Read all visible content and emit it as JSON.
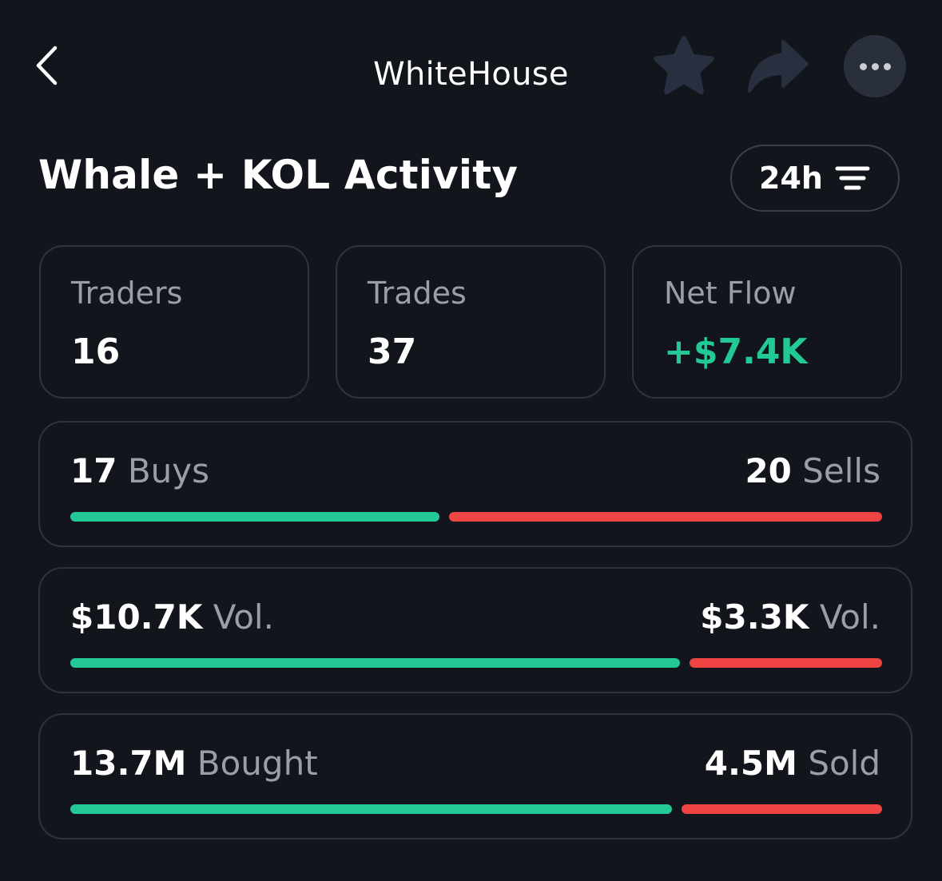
{
  "header": {
    "title": "WhiteHouse",
    "icons": {
      "back": "chevron-left-icon",
      "favorite": "star-icon",
      "share": "share-arrow-icon",
      "more": "more-dots-icon"
    }
  },
  "section": {
    "title": "Whale + KOL Activity",
    "range_label": "24h",
    "range_icon": "filter-lines-icon"
  },
  "stats": [
    {
      "label": "Traders",
      "value": "16"
    },
    {
      "label": "Trades",
      "value": "37"
    },
    {
      "label": "Net Flow",
      "value": "+$7.4K"
    }
  ],
  "rows": [
    {
      "left_value": "17",
      "left_unit": "Buys",
      "right_value": "20",
      "right_unit": "Sells",
      "buy_fraction": 0.46
    },
    {
      "left_value": "$10.7K",
      "left_unit": "Vol.",
      "right_value": "$3.3K",
      "right_unit": "Vol.",
      "buy_fraction": 0.76
    },
    {
      "left_value": "13.7M",
      "left_unit": "Bought",
      "right_value": "4.5M",
      "right_unit": "Sold",
      "buy_fraction": 0.75
    }
  ],
  "colors": {
    "background": "#12151c",
    "buy": "#22c997",
    "sell": "#ef4444",
    "muted_text": "#9a9ea8",
    "card_border": "#2e333e"
  }
}
